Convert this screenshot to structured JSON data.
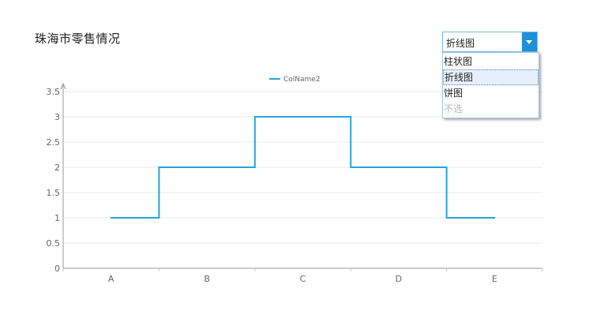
{
  "page": {
    "title": "珠海市零售情况"
  },
  "dropdown": {
    "value": "折线图",
    "options": [
      {
        "label": "柱状图",
        "selected": false,
        "disabled": false
      },
      {
        "label": "折线图",
        "selected": true,
        "disabled": false
      },
      {
        "label": "饼图",
        "selected": false,
        "disabled": false
      },
      {
        "label": "不选",
        "selected": false,
        "disabled": true
      }
    ]
  },
  "chart_data": {
    "type": "line",
    "line_style": "step",
    "categories": [
      "A",
      "B",
      "C",
      "D",
      "E"
    ],
    "series": [
      {
        "name": "ColName2",
        "values": [
          1,
          2,
          3,
          2,
          1
        ],
        "color": "#27a4dd"
      }
    ],
    "ylim": [
      0,
      3.5
    ],
    "yticks": [
      "0",
      "0.5",
      "1",
      "1.5",
      "2",
      "2.5",
      "3",
      "3.5"
    ],
    "legend_position": "top-center",
    "grid": true,
    "title": "",
    "xlabel": "",
    "ylabel": ""
  }
}
